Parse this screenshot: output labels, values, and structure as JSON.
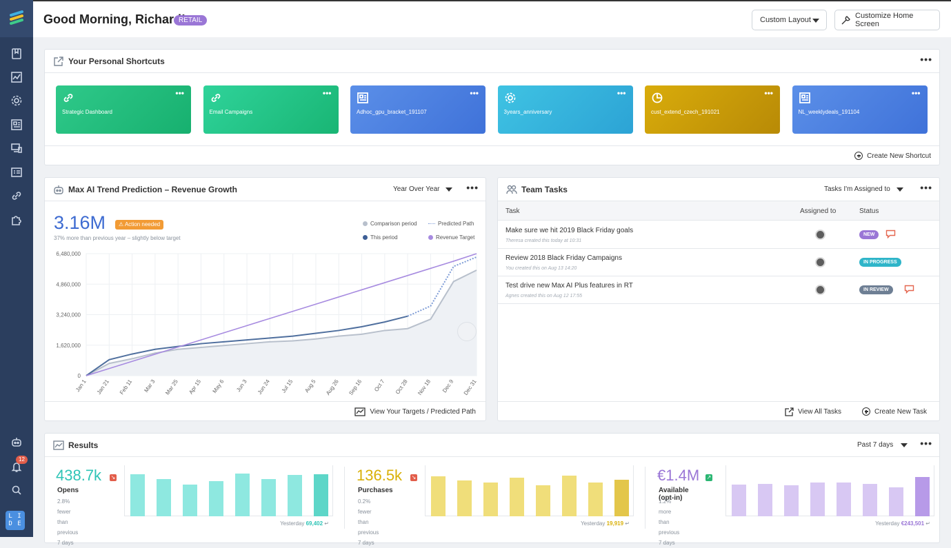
{
  "header": {
    "greeting": "Good Morning, Richard!",
    "badge": "RETAIL",
    "layout_select": "Custom Layout",
    "customize_label": "Customize Home Screen"
  },
  "sidebar": {
    "icons": [
      "bookmark-icon",
      "chart-icon",
      "gear-icon",
      "report-icon",
      "devices-icon",
      "list-card-icon",
      "link-icon",
      "puzzle-icon",
      "robot-icon",
      "bell-icon",
      "search-icon"
    ],
    "notification_count": "12",
    "badge_text": "L I D E"
  },
  "shortcuts": {
    "title": "Your Personal Shortcuts",
    "items": [
      {
        "label": "Strategic Dashboard",
        "icon": "link-icon",
        "color_from": "#2fc98a",
        "color_to": "#17b06f"
      },
      {
        "label": "Email Campaigns",
        "icon": "link-icon",
        "color_from": "#2fd39a",
        "color_to": "#19b574"
      },
      {
        "label": "Adhoc_gpu_bracket_191107",
        "icon": "report-icon",
        "color_from": "#5b8fe8",
        "color_to": "#3f72d9"
      },
      {
        "label": "3years_anniversary",
        "icon": "gear-icon",
        "color_from": "#3fc3e3",
        "color_to": "#2ca3d5"
      },
      {
        "label": "cust_extend_czech_191021",
        "icon": "pie-icon",
        "color_from": "#d9ac0b",
        "color_to": "#b88a06"
      },
      {
        "label": "NL_weeklydeals_191104",
        "icon": "report-icon",
        "color_from": "#5b8fe8",
        "color_to": "#3f72d9"
      }
    ],
    "create_label": "Create New Shortcut"
  },
  "trend": {
    "title": "Max AI Trend Prediction – Revenue Growth",
    "period_select": "Year Over Year",
    "value": "3.16M",
    "action_badge": "Action needed",
    "subtext": "37% more than previous year – slightly below target",
    "legend": [
      "Comparison period",
      "Predicted Path",
      "This period",
      "Revenue Target"
    ],
    "footer_link": "View Your Targets / Predicted Path"
  },
  "chart_data": {
    "type": "line",
    "title": "",
    "x": [
      "Jan 1",
      "Jan 21",
      "Feb 11",
      "Mar 3",
      "Mar 25",
      "Apr 15",
      "May 6",
      "Jun 3",
      "Jun 24",
      "Jul 15",
      "Aug 5",
      "Aug 26",
      "Sep 16",
      "Oct 7",
      "Oct 28",
      "Nov 18",
      "Dec 9",
      "Dec 31"
    ],
    "yticks": [
      "6,480,000",
      "4,860,000",
      "3,240,000",
      "1,620,000",
      "0"
    ],
    "ylim": [
      0,
      6480000
    ],
    "series": [
      {
        "name": "Comparison period",
        "color": "#b8c0cc",
        "values": [
          0,
          650000,
          900000,
          1200000,
          1400000,
          1500000,
          1600000,
          1700000,
          1800000,
          1850000,
          1950000,
          2100000,
          2200000,
          2400000,
          2500000,
          3000000,
          5000000,
          5600000
        ]
      },
      {
        "name": "This period",
        "color": "#4f6f9e",
        "values": [
          0,
          850000,
          1150000,
          1400000,
          1550000,
          1700000,
          1800000,
          1900000,
          2000000,
          2100000,
          2250000,
          2400000,
          2600000,
          2850000,
          3160000,
          null,
          null,
          null
        ]
      },
      {
        "name": "Predicted Path",
        "color": "#7d9bd6",
        "values": [
          null,
          null,
          null,
          null,
          null,
          null,
          null,
          null,
          null,
          null,
          null,
          null,
          null,
          null,
          3160000,
          3700000,
          5800000,
          6300000
        ]
      },
      {
        "name": "Revenue Target",
        "color": "#a78be0",
        "values": [
          0,
          380000,
          760000,
          1140000,
          1520000,
          1900000,
          2280000,
          2660000,
          3040000,
          3420000,
          3800000,
          4180000,
          4560000,
          4940000,
          5320000,
          5700000,
          6080000,
          6480000
        ]
      }
    ]
  },
  "tasks": {
    "title": "Team Tasks",
    "filter_select": "Tasks I'm Assigned to",
    "columns": [
      "Task",
      "Assigned to",
      "Status"
    ],
    "rows": [
      {
        "title": "Make sure we hit 2019 Black Friday goals",
        "meta": "Theresa created this today at 10:31",
        "status": "NEW",
        "status_color": "#9a76d6",
        "comment": true
      },
      {
        "title": "Review 2018 Black Friday Campaigns",
        "meta": "You created this on Aug 13 14:20",
        "status": "IN PROGRESS",
        "status_color": "#2fb5c9",
        "comment": false
      },
      {
        "title": "Test drive new Max AI Plus features in RT",
        "meta": "Agnes created this on Aug 12 17:55",
        "status": "IN REVIEW",
        "status_color": "#6e7f94",
        "comment": true
      }
    ],
    "view_all": "View All Tasks",
    "create_task": "Create New Task"
  },
  "results": {
    "title": "Results",
    "period_select": "Past 7 days",
    "metrics": [
      {
        "value": "438.7k",
        "label": "Opens",
        "sub1": "2.8% fewer than",
        "sub2": "previous 7 days",
        "yesterday_label": "Yesterday",
        "yesterday_value": "69,402",
        "color": "#2ec4b6",
        "bar_color": "#8ee8e0",
        "last_bar_color": "#5dd6c8",
        "trend": "down",
        "bars": [
          0.95,
          0.85,
          0.72,
          0.8,
          0.97,
          0.85,
          0.93,
          0.96
        ]
      },
      {
        "value": "136.5k",
        "label": "Purchases",
        "sub1": "0.2% fewer than",
        "sub2": "previous 7 days",
        "yesterday_label": "Yesterday",
        "yesterday_value": "19,919",
        "color": "#d9b008",
        "bar_color": "#f0de7a",
        "last_bar_color": "#e3c64a",
        "trend": "down",
        "bars": [
          0.9,
          0.82,
          0.76,
          0.88,
          0.7,
          0.92,
          0.77,
          0.83
        ]
      },
      {
        "value": "€1.4M",
        "label": "Available (opt-in)",
        "sub1": "1.2% more than",
        "sub2": "previous 7 days",
        "yesterday_label": "Yesterday",
        "yesterday_value": "€243,501",
        "color": "#9a76d6",
        "bar_color": "#d8c8f3",
        "last_bar_color": "#b79ae8",
        "trend": "up",
        "bars": [
          0.72,
          0.74,
          0.7,
          0.76,
          0.77,
          0.74,
          0.66,
          0.89
        ]
      }
    ]
  }
}
